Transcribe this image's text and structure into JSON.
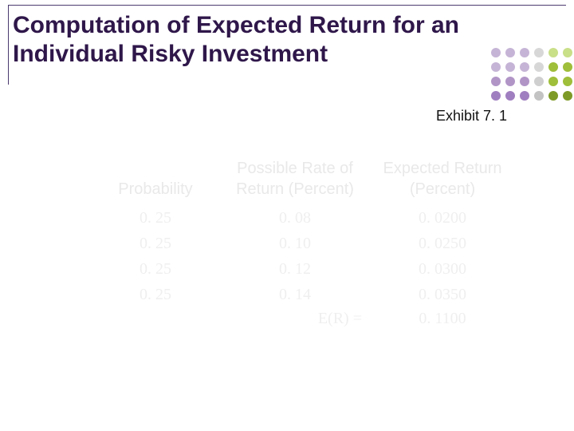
{
  "title": "Computation of Expected Return for an Individual Risky Investment",
  "title_color": "#2f174a",
  "title_fontsize": 30,
  "exhibit_label": "Exhibit 7. 1",
  "exhibit_color": "#111111",
  "divider_color": "#4b3a6e",
  "dots": {
    "rows": 4,
    "cols": 6,
    "pattern": [
      [
        "#c6b4d6",
        "#c6b4d6",
        "#c6b4d6",
        "#d7d7d7",
        "#c9df88",
        "#c9df88"
      ],
      [
        "#c6b4d6",
        "#c6b4d6",
        "#c6b4d6",
        "#d7d7d7",
        "#9fbe3a",
        "#9fbe3a"
      ],
      [
        "#b195c7",
        "#b195c7",
        "#b195c7",
        "#cfcfcf",
        "#9fbe3a",
        "#9fbe3a"
      ],
      [
        "#a07fc0",
        "#a07fc0",
        "#a07fc0",
        "#c3c3c3",
        "#7e9a26",
        "#7e9a26"
      ]
    ]
  },
  "table": {
    "header_color": "#e9e9e9",
    "cell_color": "#efefef",
    "columns": [
      {
        "line1": "",
        "line2": "Probability"
      },
      {
        "line1": "Possible Rate of",
        "line2": "Return (Percent)"
      },
      {
        "line1": "Expected Return",
        "line2": "(Percent)"
      }
    ],
    "rows": [
      [
        "0. 25",
        "0. 08",
        "0. 0200"
      ],
      [
        "0. 25",
        "0. 10",
        "0. 0250"
      ],
      [
        "0. 25",
        "0. 12",
        "0. 0300"
      ],
      [
        "0. 25",
        "0. 14",
        "0. 0350"
      ]
    ],
    "total": {
      "label": "E(R) =",
      "value": "0. 1100"
    }
  }
}
